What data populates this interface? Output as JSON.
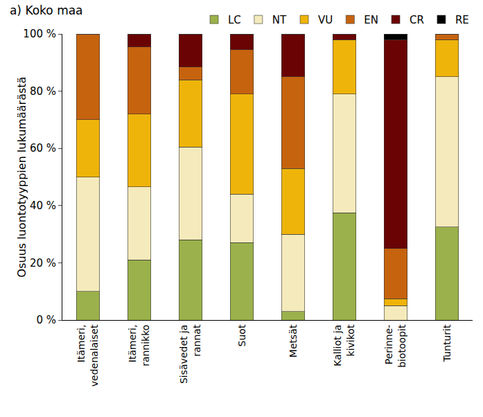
{
  "chart_data": {
    "type": "bar",
    "title": "a) Koko maa",
    "y_label": "Osuus luontotyyppien lukumäärästä",
    "categories": [
      "Itämeri,\nvedenalaiset",
      "Itämeri,\nrannikko",
      "Sisävedet ja\nrannat",
      "Suot",
      "Metsät",
      "Kalliot ja\nkivikot",
      "Perinne-\nbiotoopit",
      "Tunturit"
    ],
    "series": [
      {
        "name": "LC",
        "color": "#9bb14b",
        "values": [
          10,
          21,
          28,
          27,
          3,
          37.5,
          0,
          32.5
        ]
      },
      {
        "name": "NT",
        "color": "#f5eabb",
        "values": [
          40,
          25.5,
          32.5,
          17,
          27,
          41.5,
          5,
          52.5
        ]
      },
      {
        "name": "VU",
        "color": "#efb40a",
        "values": [
          20,
          25.5,
          23.5,
          35,
          23,
          19,
          2.5,
          13
        ]
      },
      {
        "name": "EN",
        "color": "#c6630f",
        "values": [
          30,
          23.5,
          4.5,
          15.5,
          32,
          0,
          17.5,
          2
        ]
      },
      {
        "name": "CR",
        "color": "#6a0404",
        "values": [
          0,
          4.5,
          11.5,
          5.5,
          15,
          2,
          73,
          0
        ]
      },
      {
        "name": "RE",
        "color": "#000000",
        "values": [
          0,
          0,
          0,
          0,
          0,
          0,
          2,
          0
        ]
      }
    ],
    "stacked": true,
    "ylim": [
      0,
      100
    ],
    "yticks": [
      {
        "value": 0,
        "label": "0 %"
      },
      {
        "value": 20,
        "label": "20 %"
      },
      {
        "value": 40,
        "label": "40 %"
      },
      {
        "value": 60,
        "label": "60 %"
      },
      {
        "value": 80,
        "label": "80 %"
      },
      {
        "value": 100,
        "label": "100 %"
      }
    ],
    "grid": false,
    "legend": "top-right"
  }
}
